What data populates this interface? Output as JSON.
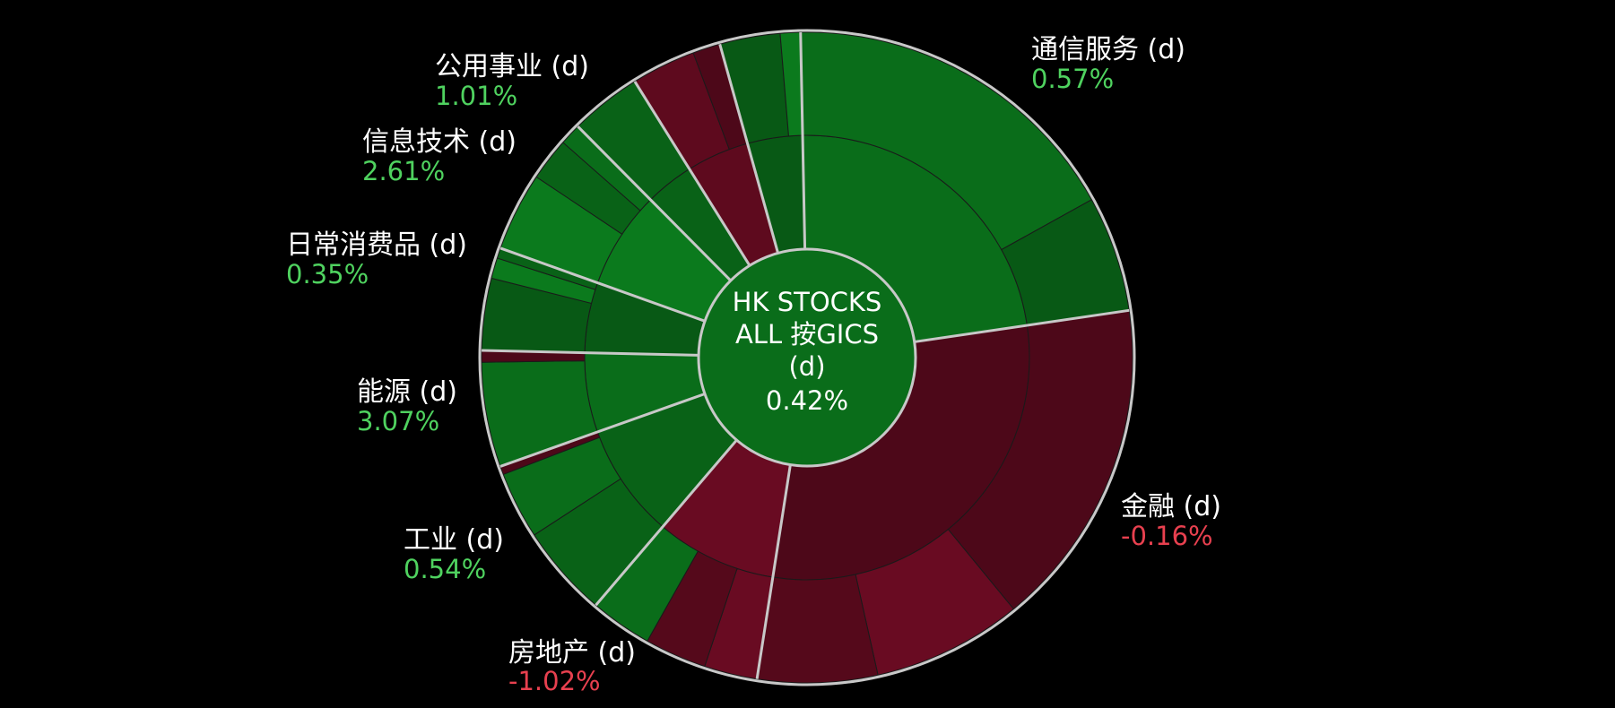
{
  "colors": {
    "background": "#000000",
    "gain": "#0a6d1a",
    "loss": "#5e0a1e",
    "gain_text": "#4fd25f",
    "loss_text": "#e8404f",
    "separator": "#c8c8c8"
  },
  "center": {
    "line1": "HK STOCKS",
    "line2": "ALL 按GICS",
    "line3": "(d)",
    "value": "0.42%"
  },
  "chart_data": {
    "type": "sunburst",
    "title": "HK STOCKS ALL 按GICS (d)",
    "total_change_pct": 0.42,
    "sectors": [
      {
        "name": "通信服务 (d)",
        "change_label": "0.57%",
        "change": 0.57,
        "direction": "up",
        "weight": 20.7,
        "sub_shares": [
          0.75,
          0.25
        ],
        "sub_dirs": [
          "up",
          "up"
        ]
      },
      {
        "name": "金融 (d)",
        "change_label": "-0.16%",
        "change": -0.16,
        "direction": "down",
        "weight": 26.8,
        "sub_shares": [
          0.55,
          0.25,
          0.2
        ],
        "sub_dirs": [
          "down",
          "down",
          "down"
        ]
      },
      {
        "name": "房地产 (d)",
        "change_label": "-1.02%",
        "change": -1.02,
        "direction": "down",
        "weight": 7.9,
        "sub_shares": [
          0.3,
          0.35,
          0.35
        ],
        "sub_dirs": [
          "down",
          "down",
          "up"
        ]
      },
      {
        "name": "工业 (d)",
        "change_label": "0.54%",
        "change": 0.54,
        "direction": "up",
        "weight": 7.5,
        "sub_shares": [
          0.55,
          0.4,
          0.05
        ],
        "sub_dirs": [
          "up",
          "up",
          "down"
        ]
      },
      {
        "name": "能源 (d)",
        "change_label": "3.07%",
        "change": 3.07,
        "direction": "up",
        "weight": 5.2,
        "sub_shares": [
          0.9,
          0.1
        ],
        "sub_dirs": [
          "up",
          "down"
        ]
      },
      {
        "name": "日常消费品 (d)",
        "change_label": "0.35%",
        "change": 0.35,
        "direction": "up",
        "weight": 4.6,
        "sub_shares": [
          0.7,
          0.2,
          0.1
        ],
        "sub_dirs": [
          "up",
          "up",
          "up"
        ]
      },
      {
        "name": "信息技术 (d)",
        "change_label": "2.61%",
        "change": 2.61,
        "direction": "up",
        "weight": 6.4,
        "sub_shares": [
          0.55,
          0.3,
          0.15
        ],
        "sub_dirs": [
          "up",
          "up",
          "up"
        ]
      },
      {
        "name": "公用事业 (d)",
        "change_label": "1.01%",
        "change": 1.01,
        "direction": "up",
        "weight": 3.2,
        "sub_shares": [
          1.0
        ],
        "sub_dirs": [
          "up"
        ]
      },
      {
        "name": "",
        "change_label": "",
        "change": -1.1,
        "direction": "down",
        "weight": 4.1,
        "sub_shares": [
          0.7,
          0.3
        ],
        "sub_dirs": [
          "down",
          "down"
        ]
      },
      {
        "name": "",
        "change_label": "",
        "change": 0.3,
        "direction": "up",
        "weight": 3.6,
        "sub_shares": [
          0.75,
          0.25
        ],
        "sub_dirs": [
          "up",
          "up"
        ]
      }
    ]
  }
}
